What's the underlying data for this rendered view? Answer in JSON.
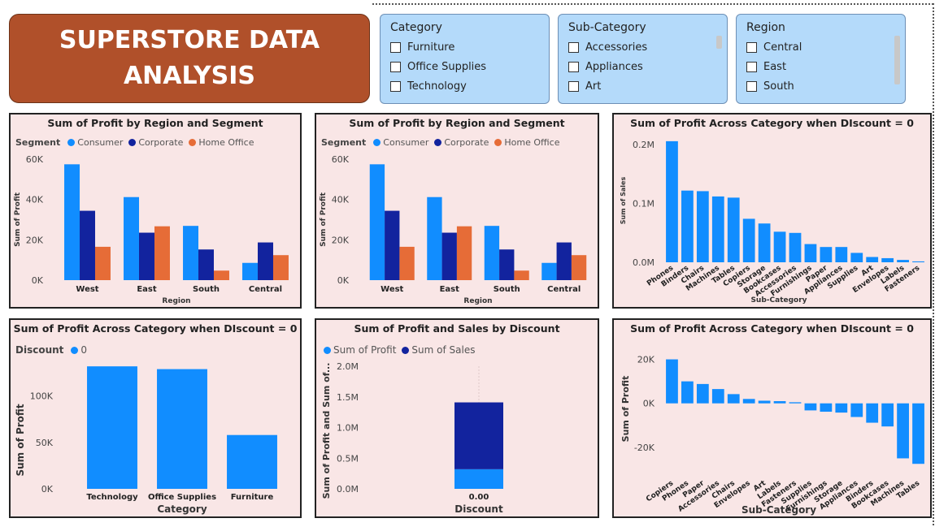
{
  "header": {
    "title_line1": "SUPERSTORE DATA",
    "title_line2": "ANALYSIS"
  },
  "colors": {
    "consumer": "#118dff",
    "corporate": "#12239e",
    "home_office": "#e66c37",
    "title_bg": "#b0502a",
    "slicer_bg": "#b4dafa",
    "panel_bg": "#f9e6e6"
  },
  "slicers": {
    "category": {
      "title": "Category",
      "items": [
        "Furniture",
        "Office Supplies",
        "Technology"
      ]
    },
    "subcategory": {
      "title": "Sub-Category",
      "items": [
        "Accessories",
        "Appliances",
        "Art"
      ]
    },
    "region": {
      "title": "Region",
      "items": [
        "Central",
        "East",
        "South"
      ]
    }
  },
  "chart_data": [
    {
      "type": "bar",
      "title": "Sum of Profit by Region and Segment",
      "legend_title": "Segment",
      "xlabel": "Region",
      "ylabel": "Sum of Profit",
      "categories": [
        "West",
        "East",
        "South",
        "Central"
      ],
      "series": [
        {
          "name": "Consumer",
          "values": [
            57450,
            41190,
            26910,
            8560
          ]
        },
        {
          "name": "Corporate",
          "values": [
            34400,
            23540,
            15210,
            18700
          ]
        },
        {
          "name": "Home Office",
          "values": [
            16540,
            26710,
            4730,
            12400
          ]
        }
      ],
      "ylim": [
        0,
        60000
      ],
      "yticks": [
        "0K",
        "20K",
        "40K",
        "60K"
      ]
    },
    {
      "type": "bar",
      "title": "Sum of Profit by Region and Segment",
      "legend_title": "Segment",
      "xlabel": "Region",
      "ylabel": "Sum of Profit",
      "categories": [
        "West",
        "East",
        "South",
        "Central"
      ],
      "series": [
        {
          "name": "Consumer",
          "values": [
            57450,
            41190,
            26910,
            8560
          ]
        },
        {
          "name": "Corporate",
          "values": [
            34400,
            23540,
            15210,
            18700
          ]
        },
        {
          "name": "Home Office",
          "values": [
            16540,
            26710,
            4730,
            12400
          ]
        }
      ],
      "ylim": [
        0,
        60000
      ],
      "yticks": [
        "0K",
        "20K",
        "40K",
        "60K"
      ]
    },
    {
      "type": "bar",
      "title": "Sum of Profit Across Category when DIscount = 0",
      "xlabel": "Sub-Category",
      "ylabel": "Sum of Sales",
      "categories": [
        "Phones",
        "Binders",
        "Chairs",
        "Machines",
        "Tables",
        "Copiers",
        "Storage",
        "Bookcases",
        "Accessories",
        "Furnishings",
        "Paper",
        "Appliances",
        "Supplies",
        "Art",
        "Envelopes",
        "Labels",
        "Fasteners"
      ],
      "values": [
        206000,
        122000,
        121000,
        112000,
        110000,
        74000,
        66000,
        52000,
        50000,
        31000,
        26000,
        26000,
        16000,
        9000,
        7000,
        4000,
        1500
      ],
      "ylim": [
        0,
        210000
      ],
      "yticks": [
        "0.0M",
        "0.1M",
        "0.2M"
      ]
    },
    {
      "type": "bar",
      "title": "Sum of Profit Across Category when DIscount = 0",
      "legend_title": "Discount",
      "legend": [
        "0"
      ],
      "xlabel": "Category",
      "ylabel": "Sum of Profit",
      "categories": [
        "Technology",
        "Office Supplies",
        "Furniture"
      ],
      "values": [
        132000,
        129000,
        58000
      ],
      "ylim": [
        0,
        140000
      ],
      "yticks": [
        "0K",
        "50K",
        "100K"
      ]
    },
    {
      "type": "bar",
      "title": "Sum of Profit and Sales by Discount",
      "legend": [
        "Sum of Profit",
        "Sum of Sales"
      ],
      "xlabel": "Discount",
      "ylabel": "Sum of Profit and Sum of...",
      "categories": [
        "0.00"
      ],
      "series": [
        {
          "name": "Sum of Profit",
          "values": [
            320000
          ]
        },
        {
          "name": "Sum of Sales",
          "values": [
            1090000
          ]
        }
      ],
      "stacked": true,
      "ylim": [
        0,
        2000000
      ],
      "yticks": [
        "0.0M",
        "0.5M",
        "1.0M",
        "1.5M",
        "2.0M"
      ]
    },
    {
      "type": "bar",
      "title": "Sum of Profit Across Category when DIscount = 0",
      "xlabel": "Sub-Category",
      "ylabel": "Sum of Profit",
      "categories": [
        "Copiers",
        "Phones",
        "Paper",
        "Accessories",
        "Chairs",
        "Envelopes",
        "Art",
        "Labels",
        "Fasteners",
        "Supplies",
        "Furnishings",
        "Storage",
        "Appliances",
        "Binders",
        "Bookcases",
        "Machines",
        "Tables"
      ],
      "values": [
        20000,
        10000,
        8800,
        6500,
        4200,
        2000,
        1200,
        1000,
        500,
        -3200,
        -3800,
        -4200,
        -6200,
        -8800,
        -10500,
        -25000,
        -27500
      ],
      "ylim": [
        -30000,
        25000
      ],
      "yticks": [
        "-20K",
        "0K",
        "20K"
      ]
    }
  ]
}
